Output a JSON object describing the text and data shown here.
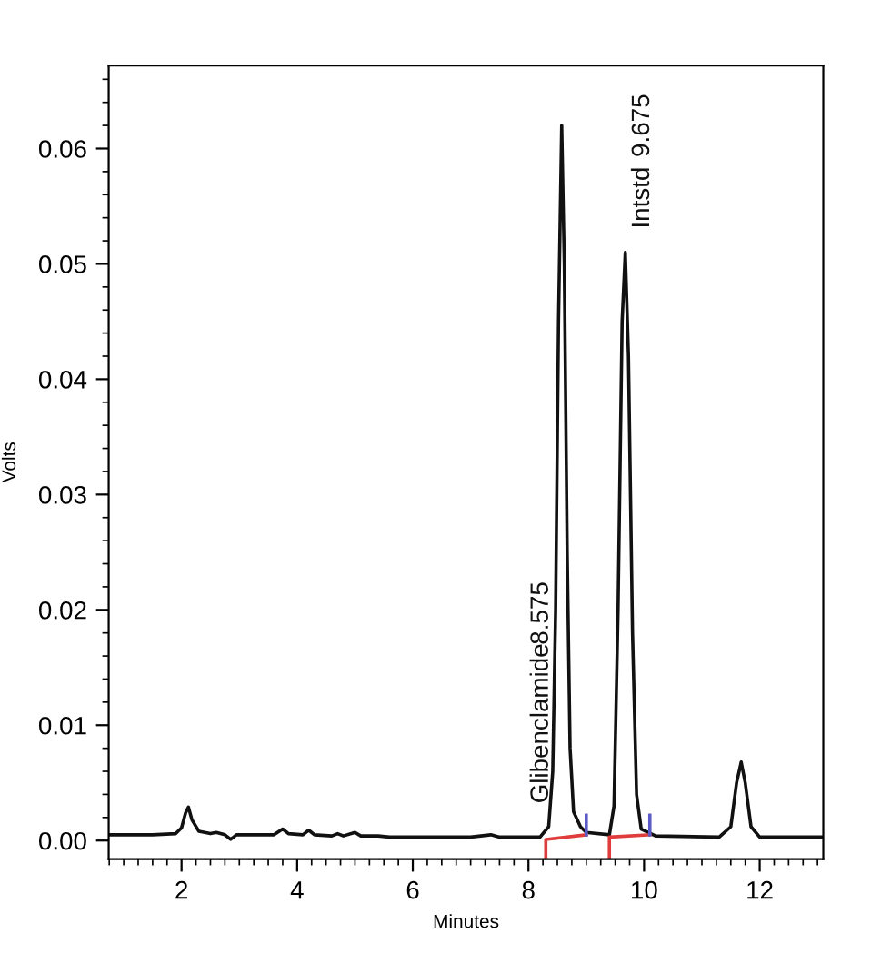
{
  "chart_data": {
    "type": "line",
    "xlabel": "Minutes",
    "ylabel": "Volts",
    "xlim": [
      0.74,
      13.1
    ],
    "ylim": [
      -0.0016,
      0.0672
    ],
    "xticks": [
      2,
      4,
      6,
      8,
      10,
      12
    ],
    "yticks": [
      {
        "value": 0,
        "label": "0.00"
      },
      0.01,
      0.02,
      0.03,
      0.04,
      0.05,
      0.06
    ],
    "grid": false,
    "marker": "none",
    "line_style": "solid",
    "series": [
      {
        "color": "#111111",
        "x": [
          0.74,
          1.5,
          1.9,
          2.0,
          2.07,
          2.12,
          2.18,
          2.3,
          2.5,
          2.6,
          2.75,
          2.85,
          2.95,
          3.3,
          3.6,
          3.75,
          3.85,
          4.1,
          4.2,
          4.3,
          4.6,
          4.7,
          4.8,
          5.0,
          5.1,
          5.4,
          5.6,
          7.0,
          7.35,
          7.5,
          8.2,
          8.35,
          8.42,
          8.47,
          8.52,
          8.575,
          8.62,
          8.67,
          8.72,
          8.78,
          8.9,
          9.0,
          9.4,
          9.48,
          9.55,
          9.62,
          9.675,
          9.73,
          9.8,
          9.87,
          9.95,
          10.2,
          11.3,
          11.5,
          11.6,
          11.68,
          11.75,
          11.85,
          12.0,
          13.1
        ],
        "values": [
          0.0005,
          0.0005,
          0.0006,
          0.0011,
          0.0024,
          0.0029,
          0.0018,
          0.0008,
          0.0006,
          0.0007,
          0.0005,
          0.0001,
          0.0005,
          0.0005,
          0.0005,
          0.001,
          0.0006,
          0.0005,
          0.0009,
          0.0005,
          0.0004,
          0.0006,
          0.0004,
          0.0007,
          0.0004,
          0.0004,
          0.0003,
          0.0003,
          0.0005,
          0.0003,
          0.0003,
          0.0012,
          0.006,
          0.02,
          0.045,
          0.062,
          0.05,
          0.025,
          0.008,
          0.0025,
          0.0012,
          0.0007,
          0.0005,
          0.003,
          0.02,
          0.045,
          0.051,
          0.042,
          0.018,
          0.004,
          0.001,
          0.0004,
          0.0003,
          0.0012,
          0.005,
          0.0068,
          0.005,
          0.0012,
          0.0003,
          0.0003
        ]
      },
      {
        "color": "#e03c3c",
        "x": [
          8.3,
          8.3,
          9.0,
          null,
          9.4,
          9.4,
          10.1
        ],
        "values": [
          -0.0015,
          0.0001,
          0.0005,
          null,
          -0.0015,
          0.0003,
          0.0005
        ]
      },
      {
        "color": "#5a5ac8",
        "x": [
          9.0,
          9.0,
          null,
          10.1,
          10.1
        ],
        "values": [
          0.0005,
          0.0022,
          null,
          0.0005,
          0.0022
        ]
      }
    ],
    "annotations": [
      "Glibenclamide",
      "8.575",
      "Intstd",
      "9.675"
    ]
  }
}
